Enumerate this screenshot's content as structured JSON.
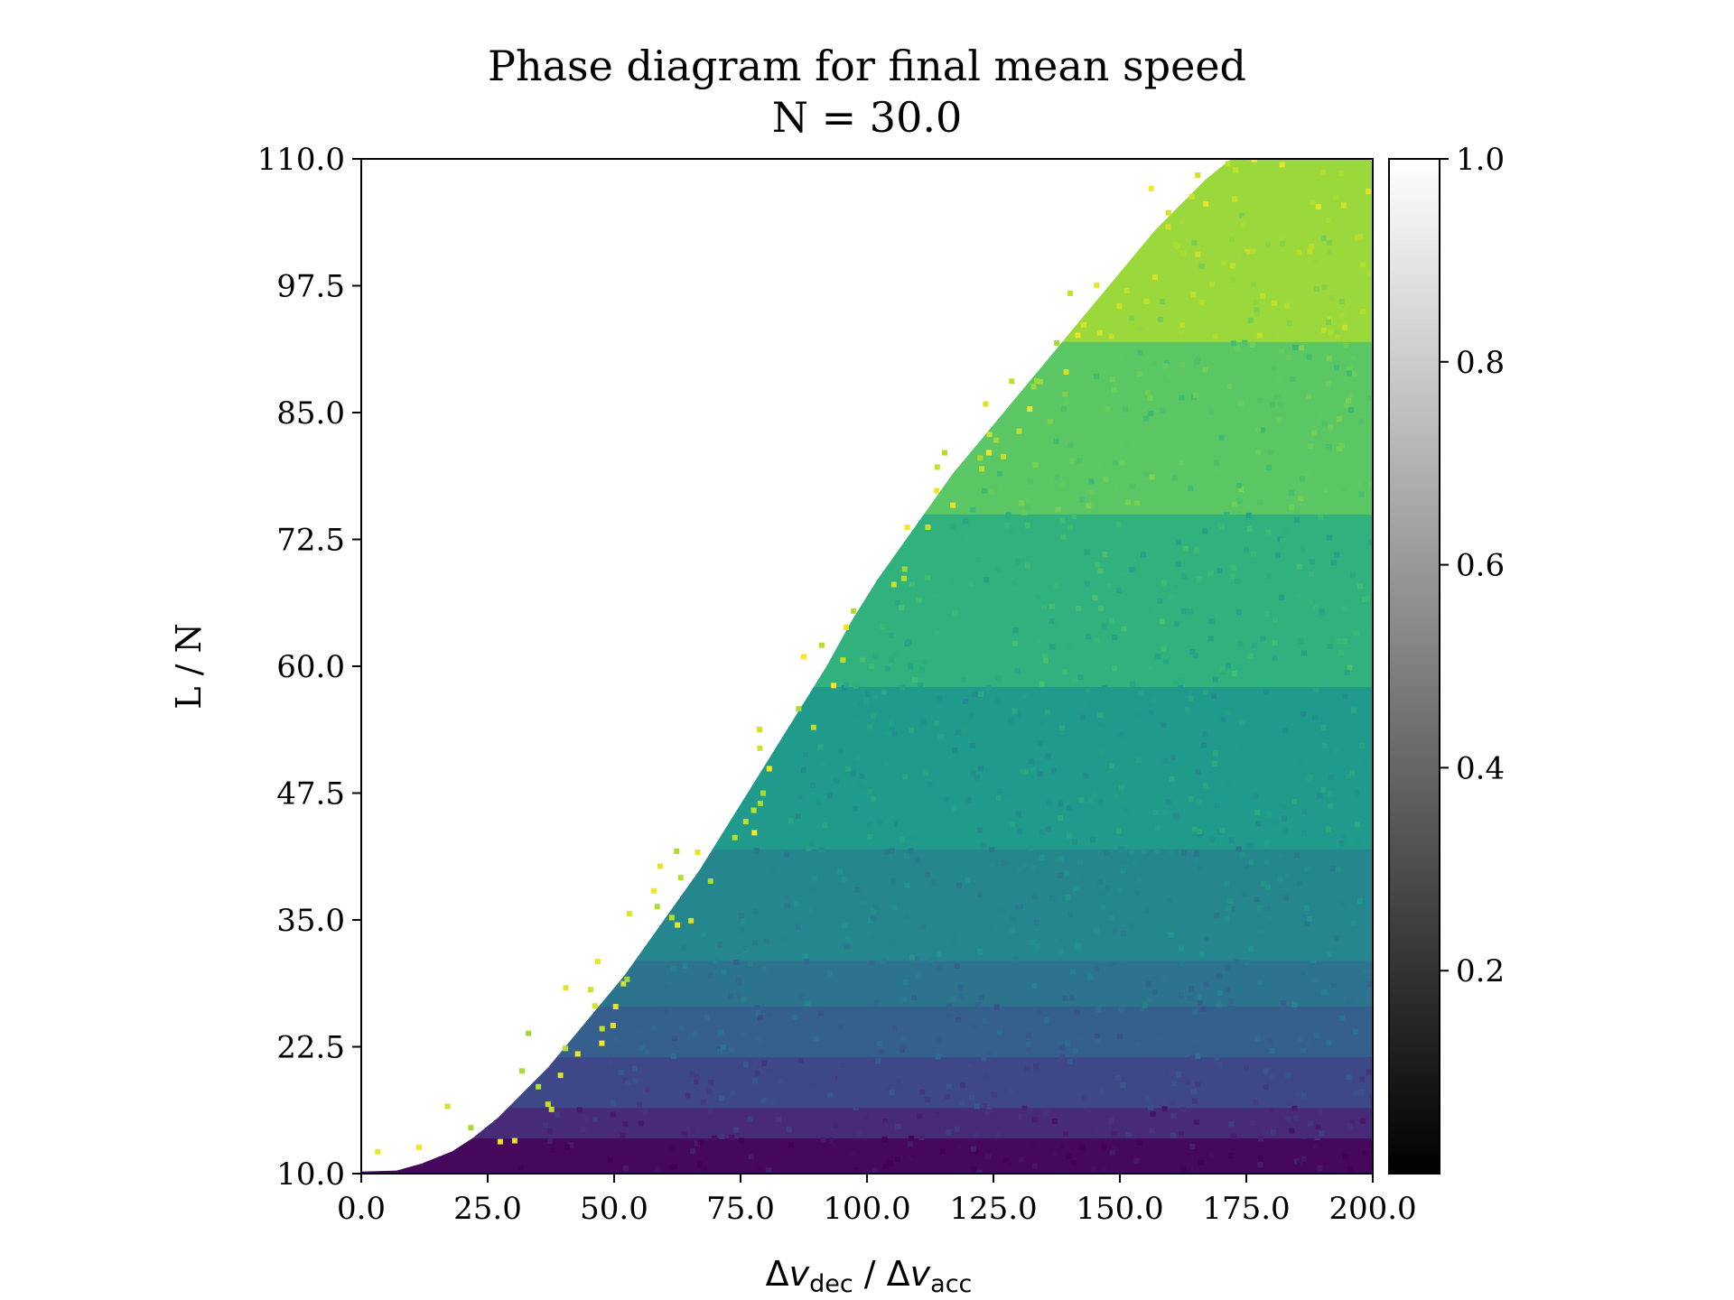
{
  "chart_data": {
    "type": "heatmap",
    "title": "Phase diagram for final mean speed",
    "subtitle": "N = 30.0",
    "xlabel": {
      "delta": "Δ",
      "v": "v",
      "dec": "dec",
      "sep": " / ",
      "acc": "acc"
    },
    "ylabel": "L / N",
    "xlim": [
      0,
      200
    ],
    "ylim": [
      10,
      110
    ],
    "xticks": [
      "0.0",
      "25.0",
      "50.0",
      "75.0",
      "100.0",
      "125.0",
      "150.0",
      "175.0",
      "200.0"
    ],
    "yticks": [
      "10.0",
      "22.5",
      "35.0",
      "47.5",
      "60.0",
      "72.5",
      "85.0",
      "97.5",
      "110.0"
    ],
    "colorbar": {
      "colormap": "greys",
      "range": [
        0,
        1
      ],
      "ticks": [
        "0.2",
        "0.4",
        "0.6",
        "0.8",
        "1.0"
      ]
    },
    "heatmap_colormap": "viridis",
    "boundary": [
      [
        0,
        10.2
      ],
      [
        7,
        10.3
      ],
      [
        12,
        11.0
      ],
      [
        18,
        12.2
      ],
      [
        22,
        13.5
      ],
      [
        27,
        15.5
      ],
      [
        32,
        18.0
      ],
      [
        37,
        20.5
      ],
      [
        42,
        23.5
      ],
      [
        47,
        26.5
      ],
      [
        52,
        29.5
      ],
      [
        57,
        33.0
      ],
      [
        62,
        36.5
      ],
      [
        67,
        40.0
      ],
      [
        72,
        44.0
      ],
      [
        77,
        48.0
      ],
      [
        82,
        52.0
      ],
      [
        87,
        56.0
      ],
      [
        92,
        60.0
      ],
      [
        97,
        64.5
      ],
      [
        102,
        68.5
      ],
      [
        107,
        72.0
      ],
      [
        112,
        75.5
      ],
      [
        117,
        79.0
      ],
      [
        122,
        82.0
      ],
      [
        127,
        85.0
      ],
      [
        132,
        88.0
      ],
      [
        137,
        91.0
      ],
      [
        142,
        94.0
      ],
      [
        147,
        97.0
      ],
      [
        152,
        100.0
      ],
      [
        157,
        103.0
      ],
      [
        162,
        105.5
      ],
      [
        167,
        108.0
      ],
      [
        172,
        110.0
      ],
      [
        200,
        110.0
      ]
    ],
    "bands": [
      {
        "y_max": 13.5,
        "value": 0.02
      },
      {
        "y_max": 16.5,
        "value": 0.12
      },
      {
        "y_max": 21.5,
        "value": 0.22
      },
      {
        "y_max": 26.5,
        "value": 0.3
      },
      {
        "y_max": 31.0,
        "value": 0.38
      },
      {
        "y_max": 42.0,
        "value": 0.46
      },
      {
        "y_max": 58.0,
        "value": 0.54
      },
      {
        "y_max": 75.0,
        "value": 0.64
      },
      {
        "y_max": 92.0,
        "value": 0.74
      },
      {
        "y_max": 110.0,
        "value": 0.85
      }
    ]
  }
}
